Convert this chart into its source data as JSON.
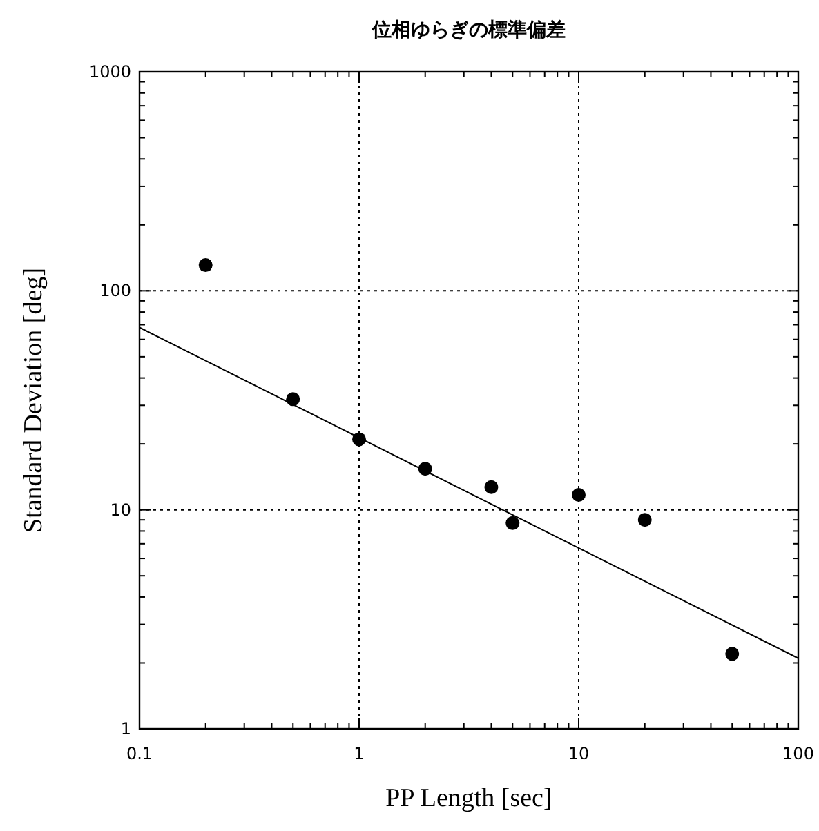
{
  "chart_data": {
    "type": "scatter",
    "title": "位相ゆらぎの標準偏差",
    "xlabel": "PP Length [sec]",
    "ylabel": "Standard Deviation [deg]",
    "log": "xy",
    "xlim": [
      0.1,
      100
    ],
    "ylim": [
      1,
      1000
    ],
    "xticks": [
      {
        "value": 0.1,
        "label": "0.1"
      },
      1,
      10,
      100
    ],
    "yticks": [
      1,
      10,
      100,
      1000
    ],
    "grid": true,
    "series": [
      {
        "type": "scatter",
        "color": "#000000",
        "marker": "circle",
        "x": [
          0.2,
          0.5,
          1,
          2,
          4,
          5,
          10,
          20,
          50
        ],
        "values": [
          131,
          32,
          21,
          15.4,
          12.7,
          8.7,
          11.7,
          9.0,
          2.2
        ]
      },
      {
        "type": "line",
        "color": "#000000",
        "line_style": "solid",
        "x": [
          0.1,
          100
        ],
        "values": [
          68,
          2.1
        ]
      }
    ]
  }
}
